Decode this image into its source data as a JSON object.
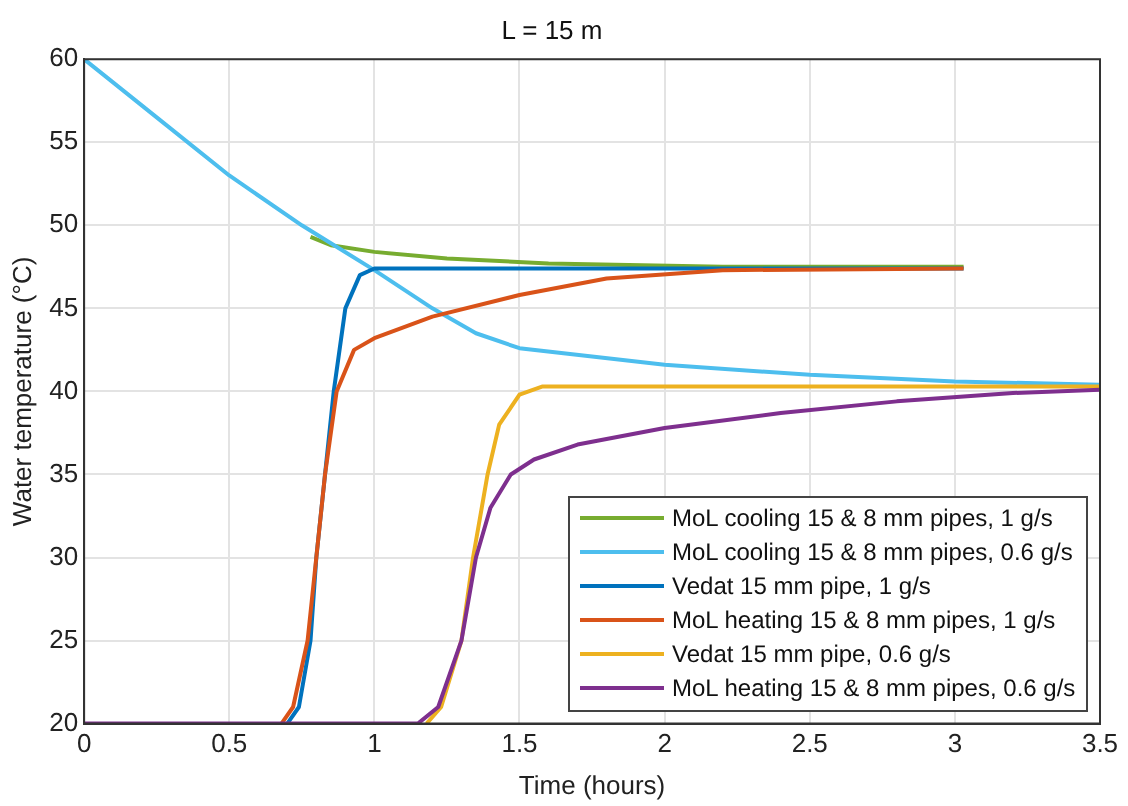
{
  "chart_data": {
    "type": "line",
    "title": "L = 15 m",
    "xlabel": "Time (hours)",
    "ylabel": "Water temperature (°C)",
    "xlim": [
      0,
      3.5
    ],
    "xticks": [
      0,
      0.5,
      1,
      1.5,
      2,
      2.5,
      3,
      3.5
    ],
    "ylim": [
      20,
      60
    ],
    "yticks": [
      20,
      25,
      30,
      35,
      40,
      45,
      50,
      55,
      60
    ],
    "grid": true,
    "legend": "bottom right",
    "marker": "none",
    "line_style": "solid",
    "series": [
      {
        "name": "MoL cooling 15 & 8 mm pipes, 1 g/s",
        "color": "#77ac30",
        "x": [
          0.78,
          0.85,
          1.0,
          1.25,
          1.6,
          2.2,
          3.03
        ],
        "values": [
          49.3,
          48.8,
          48.4,
          48,
          47.7,
          47.5,
          47.5
        ]
      },
      {
        "name": "MoL cooling 15 & 8 mm pipes, 0.6 g/s",
        "color": "#4dbeee",
        "x": [
          0,
          0.25,
          0.5,
          0.75,
          1.0,
          1.2,
          1.35,
          1.5,
          2.0,
          2.5,
          3.0,
          3.5
        ],
        "values": [
          60,
          56.5,
          53,
          50,
          47.3,
          45,
          43.5,
          42.6,
          41.6,
          41,
          40.6,
          40.4
        ]
      },
      {
        "name": "Vedat 15 mm pipe, 1 g/s",
        "color": "#0072bd",
        "x": [
          0.7,
          0.74,
          0.78,
          0.8,
          0.83,
          0.86,
          0.9,
          0.95,
          1.0,
          3.03
        ],
        "values": [
          20,
          21,
          25,
          30,
          35,
          40,
          45,
          47,
          47.4,
          47.4
        ]
      },
      {
        "name": "MoL heating 15 & 8 mm pipes, 1 g/s",
        "color": "#d95319",
        "x": [
          0.68,
          0.72,
          0.77,
          0.8,
          0.83,
          0.87,
          0.93,
          1.0,
          1.2,
          1.5,
          1.8,
          2.2,
          3.03
        ],
        "values": [
          20,
          21,
          25,
          30,
          35,
          40,
          42.5,
          43.2,
          44.5,
          45.8,
          46.8,
          47.3,
          47.4
        ]
      },
      {
        "name": "Vedat 15 mm pipe, 0.6 g/s",
        "color": "#edb120",
        "x": [
          1.18,
          1.23,
          1.3,
          1.34,
          1.39,
          1.43,
          1.5,
          1.58,
          3.5
        ],
        "values": [
          20,
          21,
          25,
          30,
          35,
          38,
          39.8,
          40.3,
          40.3
        ]
      },
      {
        "name": "MoL heating 15 & 8 mm pipes, 0.6 g/s",
        "color": "#7e2f8e",
        "x": [
          0,
          1.15,
          1.22,
          1.3,
          1.35,
          1.4,
          1.47,
          1.55,
          1.7,
          2.0,
          2.4,
          2.8,
          3.2,
          3.5
        ],
        "values": [
          20,
          20,
          21,
          25,
          30,
          33,
          35,
          35.9,
          36.8,
          37.8,
          38.7,
          39.4,
          39.9,
          40.1
        ]
      }
    ]
  }
}
